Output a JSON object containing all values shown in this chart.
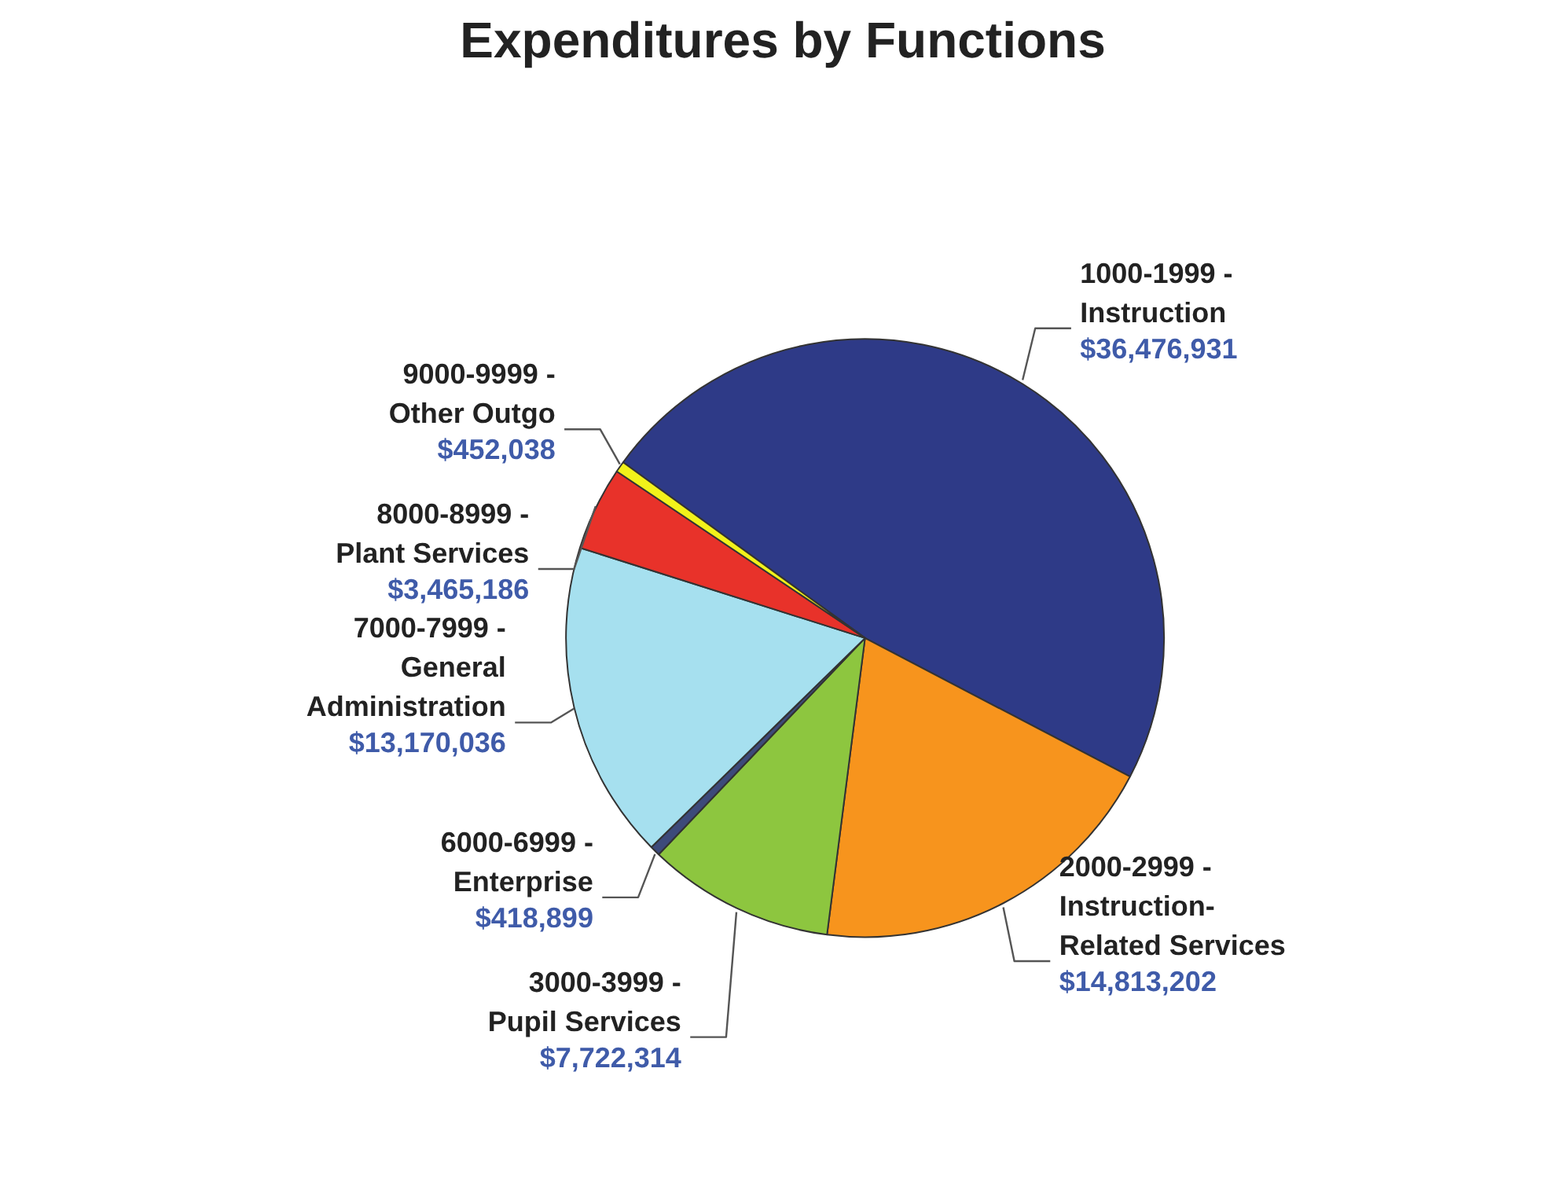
{
  "chart_data": {
    "type": "pie",
    "title": "Expenditures by Functions",
    "categories": [
      "1000-1999 -\nInstruction",
      "2000-2999 -\nInstruction-\nRelated Services",
      "3000-3999 -\nPupil Services",
      "6000-6999 -\nEnterprise",
      "7000-7999 -\nGeneral\nAdministration",
      "8000-8999 -\nPlant Services",
      "9000-9999 -\nOther Outgo"
    ],
    "values": [
      36476931,
      14813202,
      7722314,
      418899,
      13170036,
      3465186,
      452038
    ],
    "value_labels": [
      "$36,476,931",
      "$14,813,202",
      "$7,722,314",
      "$418,899",
      "$13,170,036",
      "$3,465,186",
      "$452,038"
    ],
    "colors": [
      "#2e3a87",
      "#f7941d",
      "#8dc63f",
      "#3d4a7a",
      "#a6e0ef",
      "#e8322a",
      "#f2f21a"
    ]
  }
}
